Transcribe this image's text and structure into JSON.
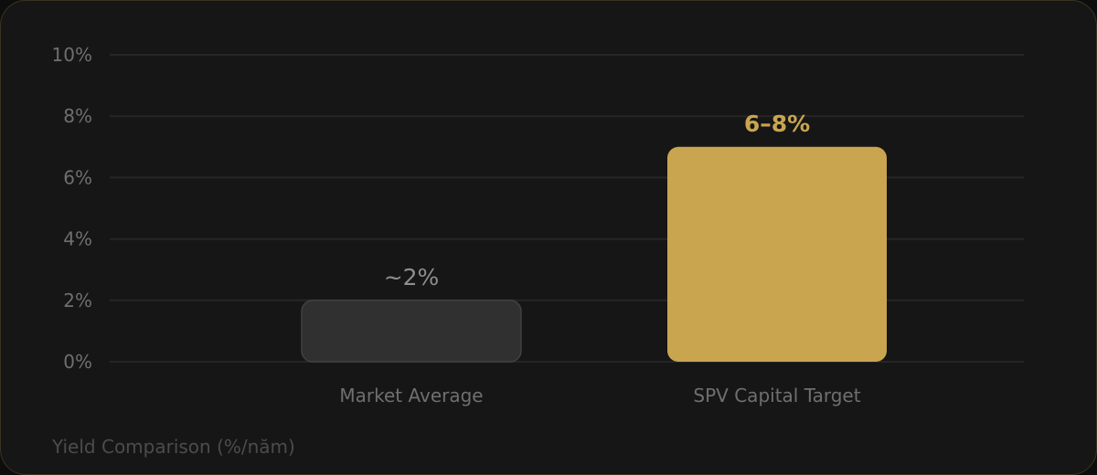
{
  "chart_data": {
    "type": "bar",
    "title": "Yield Comparison (%/năm)",
    "categories": [
      "Market Average",
      "SPV Capital Target"
    ],
    "values": [
      2,
      7
    ],
    "value_labels": [
      "~2%",
      "6–8%"
    ],
    "ylim": [
      0,
      10
    ],
    "yticks": [
      {
        "value": 0,
        "label": "0%"
      },
      {
        "value": 2,
        "label": "2%"
      },
      {
        "value": 4,
        "label": "4%"
      },
      {
        "value": 6,
        "label": "6%"
      },
      {
        "value": 8,
        "label": "8%"
      },
      {
        "value": 10,
        "label": "10%"
      }
    ],
    "grid": true,
    "legend": "none",
    "colors": {
      "background": "#161616",
      "gridline": "#262626",
      "market_bar": "#303030",
      "market_bar_border": "#414141",
      "target_bar": "#c9a550",
      "accent_text": "#c9a550"
    }
  }
}
